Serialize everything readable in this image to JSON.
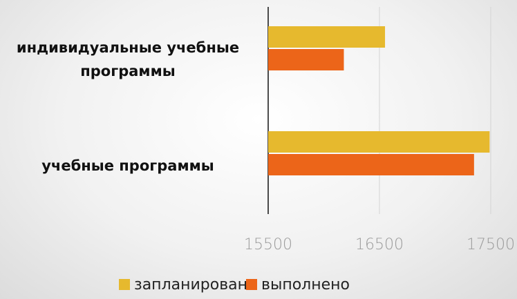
{
  "chart_data": {
    "type": "barh",
    "categories": [
      "индивидуальные учебные программы",
      "учебные программы"
    ],
    "series": [
      {
        "name": "запланировано",
        "color": "#e6b92e",
        "values": [
          16550,
          17490
        ]
      },
      {
        "name": "выполнено",
        "color": "#ec6519",
        "values": [
          16180,
          17350
        ]
      }
    ],
    "xlim": [
      15500,
      17500
    ],
    "xticks": [
      15500,
      16500,
      17500
    ],
    "grid": true
  }
}
